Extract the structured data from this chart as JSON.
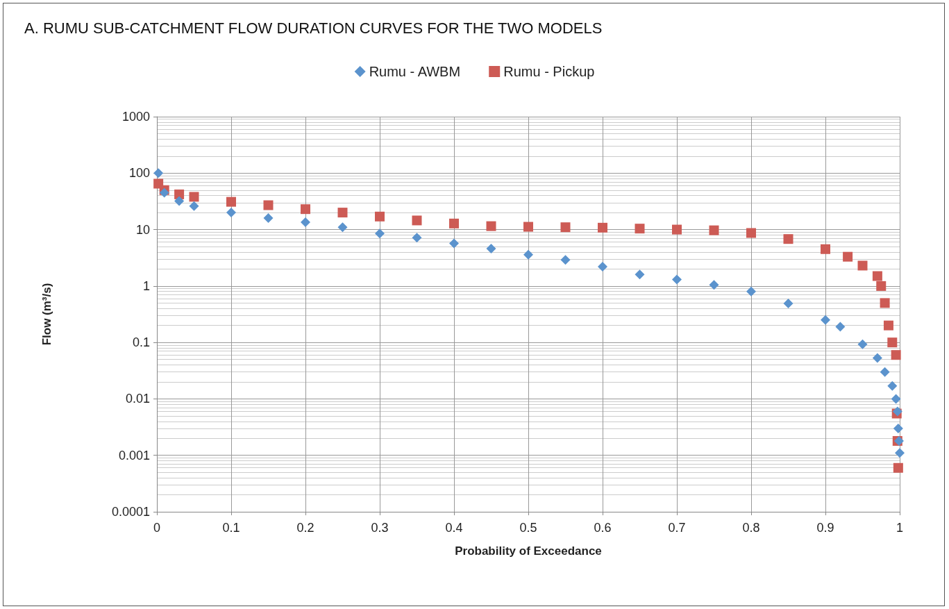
{
  "chart_data": {
    "type": "scatter",
    "title": "A. RUMU SUB-CATCHMENT FLOW DURATION CURVES FOR THE TWO MODELS",
    "xlabel": "Probability of Exceedance",
    "ylabel": "Flow (m³/s)",
    "legend": "top",
    "grid": true,
    "log": "y",
    "xlim": [
      0,
      1
    ],
    "xticks": [
      0,
      0.1,
      0.2,
      0.3,
      0.4,
      0.5,
      0.6,
      0.7,
      0.8,
      0.9,
      1
    ],
    "ylim": [
      0.0001,
      1000
    ],
    "yticks": [
      0.0001,
      0.001,
      0.01,
      0.1,
      1,
      10,
      100,
      1000
    ],
    "series": [
      {
        "name": "Rumu - AWBM",
        "color": "#5b93cd",
        "marker": "diamond",
        "x": [
          0.002,
          0.01,
          0.03,
          0.05,
          0.1,
          0.15,
          0.2,
          0.25,
          0.3,
          0.35,
          0.4,
          0.45,
          0.5,
          0.55,
          0.6,
          0.65,
          0.7,
          0.75,
          0.8,
          0.85,
          0.9,
          0.92,
          0.95,
          0.97,
          0.98,
          0.99,
          0.995,
          0.997,
          0.998,
          0.999,
          1.0
        ],
        "values": [
          100,
          45,
          32,
          26,
          20,
          16,
          13.5,
          11,
          8.5,
          7.2,
          5.7,
          4.6,
          3.6,
          2.9,
          2.2,
          1.6,
          1.3,
          1.05,
          0.8,
          0.49,
          0.25,
          0.19,
          0.093,
          0.053,
          0.03,
          0.017,
          0.01,
          0.006,
          0.003,
          0.0018,
          0.0011
        ]
      },
      {
        "name": "Rumu - Pickup",
        "color": "#cd5b55",
        "marker": "square",
        "x": [
          0.002,
          0.01,
          0.03,
          0.05,
          0.1,
          0.15,
          0.2,
          0.25,
          0.3,
          0.35,
          0.4,
          0.45,
          0.5,
          0.55,
          0.6,
          0.65,
          0.7,
          0.75,
          0.8,
          0.85,
          0.9,
          0.93,
          0.95,
          0.97,
          0.975,
          0.98,
          0.985,
          0.99,
          0.995,
          0.996,
          0.997,
          0.998
        ],
        "values": [
          65,
          50,
          42,
          38,
          31,
          27,
          23,
          20,
          17,
          14.5,
          12.8,
          11.5,
          11.2,
          11,
          10.8,
          10.4,
          10,
          9.7,
          8.7,
          6.8,
          4.5,
          3.3,
          2.3,
          1.5,
          1.0,
          0.5,
          0.2,
          0.1,
          0.06,
          0.0055,
          0.0018,
          0.0006
        ]
      }
    ]
  }
}
